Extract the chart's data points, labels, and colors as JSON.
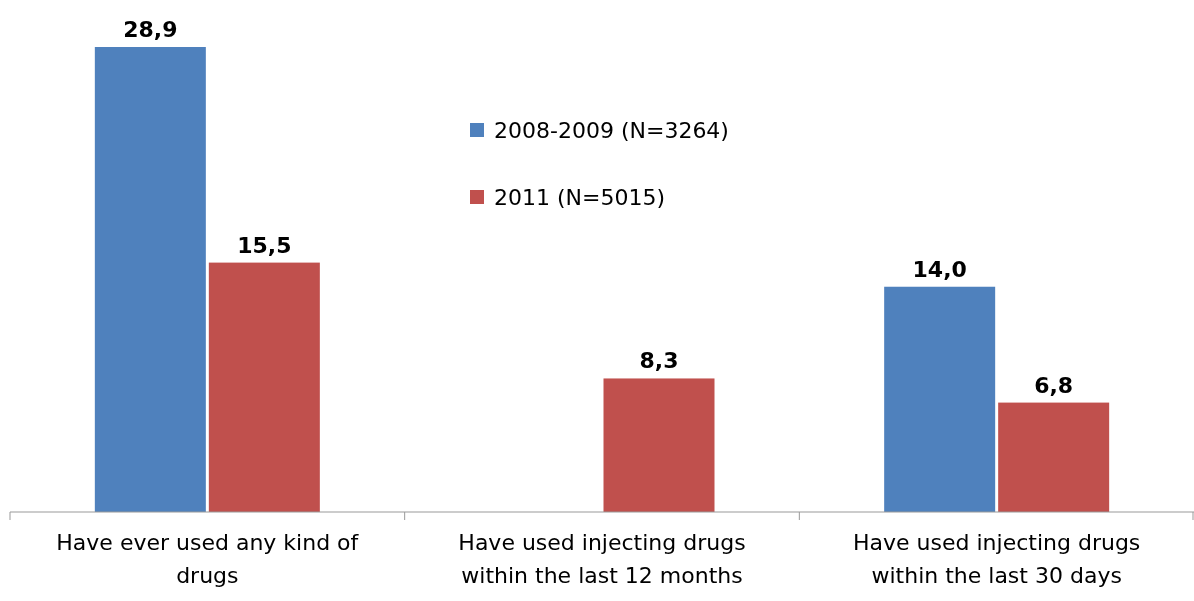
{
  "chart_data": {
    "type": "bar",
    "categories": [
      "Have ever used any kind of drugs",
      "Have used injecting drugs within the last 12 months",
      "Have used injecting drugs within the last 30 days"
    ],
    "series": [
      {
        "name": "2008-2009 (N=3264)",
        "color": "#4f81bd",
        "values": [
          28.9,
          null,
          14.0
        ],
        "value_labels": [
          "28,9",
          null,
          "14,0"
        ]
      },
      {
        "name": "2011 (N=5015)",
        "color": "#c0504d",
        "values": [
          15.5,
          8.3,
          6.8
        ],
        "value_labels": [
          "15,5",
          "8,3",
          "6,8"
        ]
      }
    ],
    "legend": "top"
  }
}
